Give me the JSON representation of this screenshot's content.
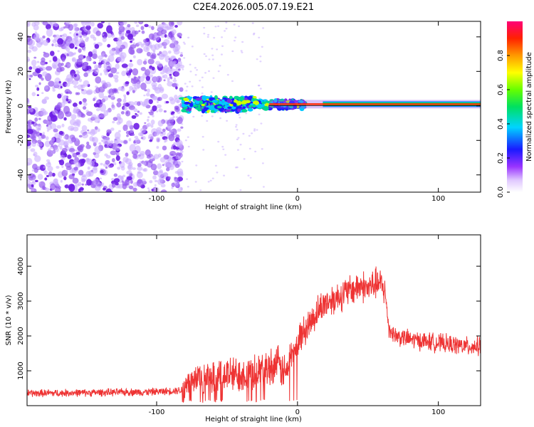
{
  "figure_title": "C2E4.2026.005.07.19.E21",
  "colors": {
    "snr_line": "#ee3333",
    "spectrogram_scatter": "#7a2be6",
    "ridge": "#ff2a00"
  },
  "chart_data": [
    {
      "type": "heatmap",
      "title": "C2E4.2026.005.07.19.E21",
      "xlabel": "Height of straight line (km)",
      "ylabel": "Frequency (Hz)",
      "xlim": [
        -192,
        130
      ],
      "ylim": [
        -50,
        49
      ],
      "x_ticks": [
        -100,
        0,
        100
      ],
      "x_tick_labels": [
        "-100",
        "0",
        "100"
      ],
      "y_ticks": [
        -40,
        -20,
        0,
        20,
        40
      ],
      "y_tick_labels": [
        "-40",
        "-20",
        "0",
        "20",
        "40"
      ],
      "description_regions": [
        {
          "x_range": [
            -192,
            -82
          ],
          "content": "broadband noise, normalized amplitude ~0.05-0.2"
        },
        {
          "x_range": [
            -82,
            5
          ],
          "content": "band around 0 Hz with amplitude ~0.3-0.5"
        },
        {
          "x_range": [
            5,
            130
          ],
          "content": "narrow ridge at ~1 Hz, amplitude ~0.9-1.0"
        }
      ],
      "ridge_frequency_hz": 1,
      "colorbar": {
        "label": "Normalized spectral amplitude",
        "range": [
          0,
          1
        ],
        "ticks": [
          0.0,
          0.2,
          0.4,
          0.6,
          0.8
        ],
        "tick_labels": [
          "0.0",
          "0.2",
          "0.4",
          "0.6",
          "0.8"
        ]
      }
    },
    {
      "type": "line",
      "xlabel": "Height of straight line (km)",
      "ylabel": "SNR (10 * v/v)",
      "xlim": [
        -192,
        130
      ],
      "ylim": [
        0,
        4900
      ],
      "x_ticks": [
        -100,
        0,
        100
      ],
      "x_tick_labels": [
        "-100",
        "0",
        "100"
      ],
      "y_ticks": [
        1000,
        2000,
        3000,
        4000
      ],
      "y_tick_labels": [
        "1000",
        "2000",
        "3000",
        "4000"
      ],
      "series": [
        {
          "name": "SNR",
          "x": [
            -192,
            -180,
            -170,
            -160,
            -150,
            -140,
            -130,
            -120,
            -110,
            -100,
            -90,
            -82,
            -75,
            -70,
            -65,
            -60,
            -55,
            -50,
            -45,
            -40,
            -35,
            -30,
            -25,
            -20,
            -15,
            -10,
            -8,
            -5,
            0,
            5,
            10,
            15,
            20,
            25,
            30,
            35,
            40,
            45,
            50,
            55,
            60,
            62,
            65,
            70,
            80,
            90,
            100,
            110,
            120,
            130
          ],
          "y": [
            350,
            360,
            360,
            370,
            370,
            380,
            380,
            390,
            390,
            400,
            420,
            450,
            650,
            800,
            750,
            700,
            800,
            900,
            850,
            950,
            900,
            1000,
            1050,
            1100,
            1200,
            1000,
            900,
            1400,
            1850,
            2150,
            2450,
            2750,
            2950,
            3050,
            3150,
            3250,
            3350,
            3450,
            3350,
            3500,
            3450,
            3300,
            2200,
            2000,
            1900,
            1850,
            1800,
            1750,
            1700,
            1700
          ]
        }
      ]
    }
  ]
}
